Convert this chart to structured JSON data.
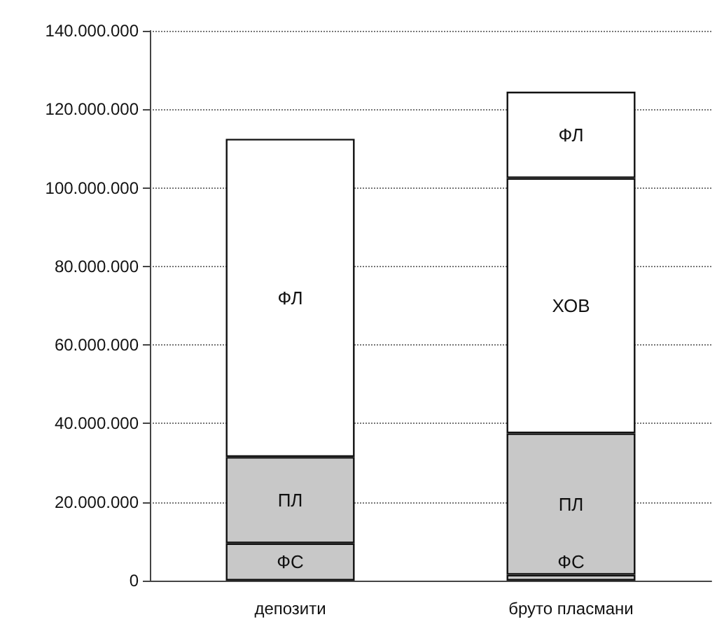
{
  "chart_data": {
    "type": "bar",
    "stacked": true,
    "categories": [
      "депозити",
      "бруто пласмани"
    ],
    "series": [
      {
        "name": "ФС",
        "color": "#c8c8c8",
        "values": [
          9500000.0,
          1500000.0
        ]
      },
      {
        "name": "ПЛ",
        "color": "#c8c8c8",
        "values": [
          22000000.0,
          36000000.0
        ]
      },
      {
        "name": "ХОВ",
        "color": "#ffffff",
        "values": [
          null,
          65000000.0
        ]
      },
      {
        "name": "ФЛ",
        "color": "#ffffff",
        "values": [
          81000000.0,
          22000000.0
        ]
      }
    ],
    "ylim": [
      0,
      140000000
    ],
    "yticks": [
      {
        "value": 0,
        "label": "0"
      },
      {
        "value": 20000000,
        "label": "20.000.000"
      },
      {
        "value": 40000000,
        "label": "40.000.000"
      },
      {
        "value": 60000000,
        "label": "60.000.000"
      },
      {
        "value": 80000000,
        "label": "80.000.000"
      },
      {
        "value": 100000000,
        "label": "100.000.000"
      },
      {
        "value": 120000000,
        "label": "120.000.000"
      },
      {
        "value": 140000000,
        "label": "140.000.000"
      }
    ],
    "grid": "y"
  }
}
